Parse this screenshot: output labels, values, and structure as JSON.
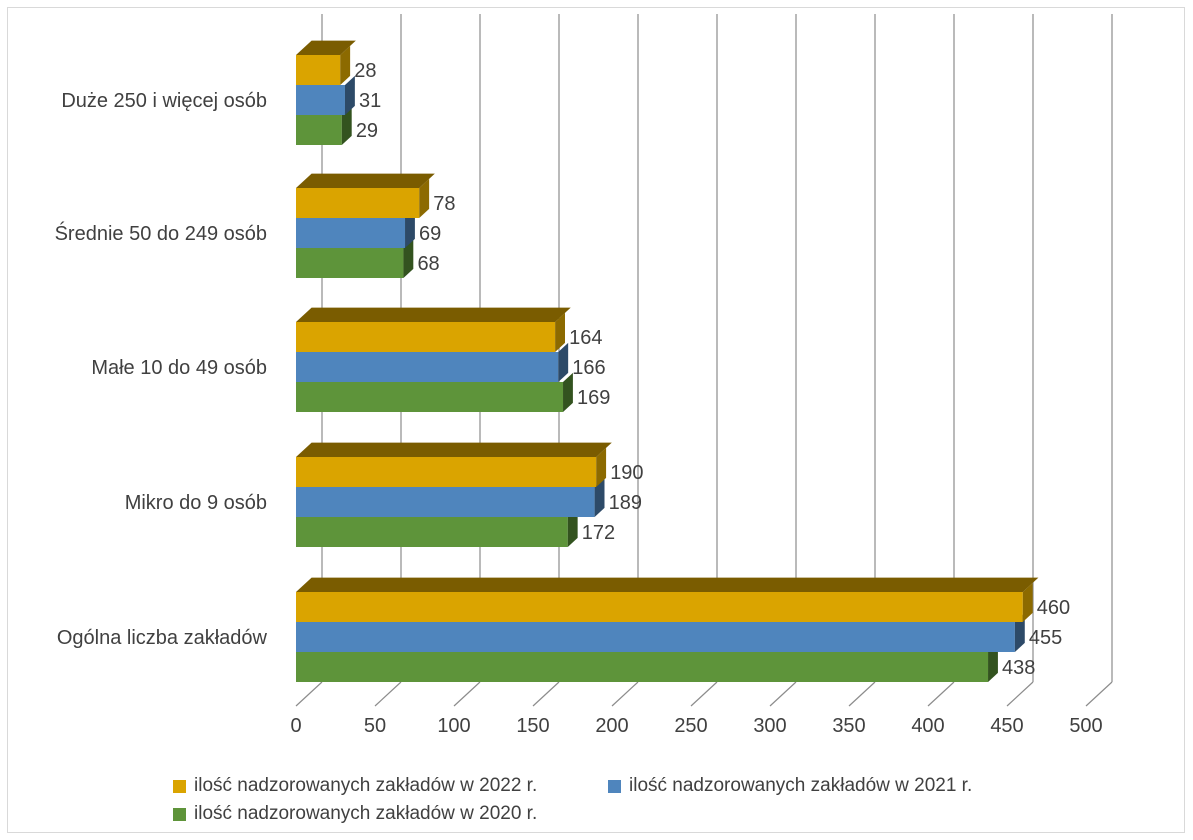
{
  "chart_data": {
    "type": "bar",
    "orientation": "horizontal",
    "style": "3d",
    "categories": [
      "Ogólna liczba zakładów",
      "Mikro do 9 osób",
      "Małe 10 do 49 osób",
      "Średnie 50 do 249 osób",
      "Duże 250 i więcej osób"
    ],
    "series": [
      {
        "name": "ilość nadzorowanych zakładów w 2022 r.",
        "color": "#DAA400",
        "side_color": "#8C6A00",
        "top_color": "#7A5C00",
        "values": [
          460,
          190,
          164,
          78,
          28
        ]
      },
      {
        "name": "ilość nadzorowanych zakładów w 2021 r.",
        "color": "#4F85BD",
        "side_color": "#2D4A68",
        "top_color": "#2D4A68",
        "values": [
          455,
          189,
          166,
          69,
          31
        ]
      },
      {
        "name": "ilość nadzorowanych zakładów w 2020 r.",
        "color": "#5E943A",
        "side_color": "#33531F",
        "top_color": "#33531F",
        "values": [
          438,
          172,
          169,
          68,
          29
        ]
      }
    ],
    "xlim": [
      0,
      500
    ],
    "xticks": [
      "0",
      "50",
      "100",
      "150",
      "200",
      "250",
      "300",
      "350",
      "400",
      "450",
      "500"
    ],
    "grid": true,
    "legend_position": "bottom",
    "title": "",
    "xlabel": "",
    "ylabel": ""
  }
}
